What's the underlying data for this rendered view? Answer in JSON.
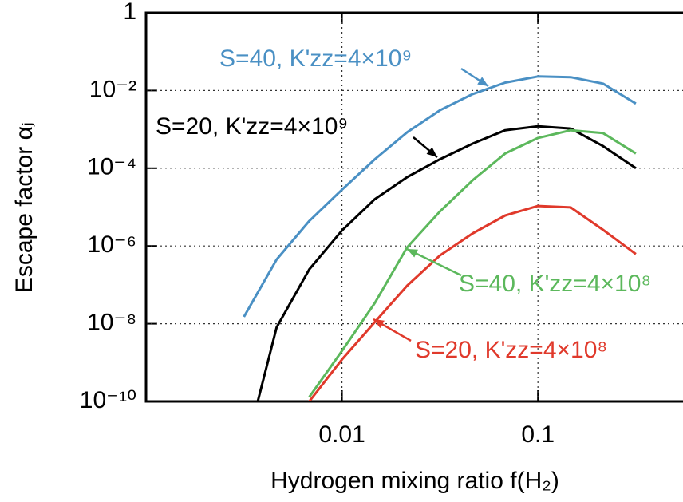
{
  "chart_data": {
    "type": "line",
    "xlabel": "Hydrogen mixing ratio f(H₂)",
    "ylabel": "Escape factor αⱼ",
    "xscale": "log",
    "yscale": "log",
    "xlim": [
      0.001,
      0.55
    ],
    "ylim": [
      1e-10,
      1
    ],
    "xticks": [
      0.01,
      0.1
    ],
    "yticks": [
      {
        "value": 1e-10,
        "label": "10⁻¹⁰"
      },
      {
        "value": 1e-08,
        "label": "10⁻⁸"
      },
      {
        "value": 1e-06,
        "label": "10⁻⁶"
      },
      {
        "value": 0.0001,
        "label": "10⁻⁴"
      },
      {
        "value": 0.01,
        "label": "10⁻²"
      },
      1
    ],
    "grid": true,
    "x": [
      0.00316,
      0.00464,
      0.00681,
      0.01,
      0.0147,
      0.0215,
      0.0316,
      0.0464,
      0.0681,
      0.1,
      0.147,
      0.215,
      0.316
    ],
    "series": [
      {
        "name": "S=40, K'zz=4×10⁹",
        "color": "#4a90c4",
        "values": [
          1.5e-08,
          4.5e-07,
          4.4e-06,
          2.8e-05,
          0.00017,
          0.00084,
          0.0031,
          0.0081,
          0.016,
          0.023,
          0.022,
          0.015,
          0.0046
        ]
      },
      {
        "name": "S=20, K'zz=4×10⁹",
        "color": "#000000",
        "values": [
          4e-12,
          8.1e-09,
          2.5e-07,
          2.5e-06,
          1.6e-05,
          5.9e-05,
          0.00017,
          0.00043,
          0.00095,
          0.0012,
          0.00105,
          0.00037,
          0.0001
        ]
      },
      {
        "name": "S=40, K'zz=4×10⁸",
        "color": "#5cb85c",
        "values": [
          null,
          null,
          1.3e-10,
          2e-09,
          3.4e-08,
          9.2e-07,
          7.7e-06,
          4.9e-05,
          0.00024,
          0.0006,
          0.00095,
          0.0008,
          0.00024
        ]
      },
      {
        "name": "S=20, K'zz=4×10⁸",
        "color": "#e0392b",
        "values": [
          null,
          null,
          1e-10,
          1.2e-09,
          1.1e-08,
          9.5e-08,
          5.7e-07,
          2.1e-06,
          6.1e-06,
          1.07e-05,
          9.8e-06,
          2.6e-06,
          6.2e-07
        ]
      }
    ]
  }
}
